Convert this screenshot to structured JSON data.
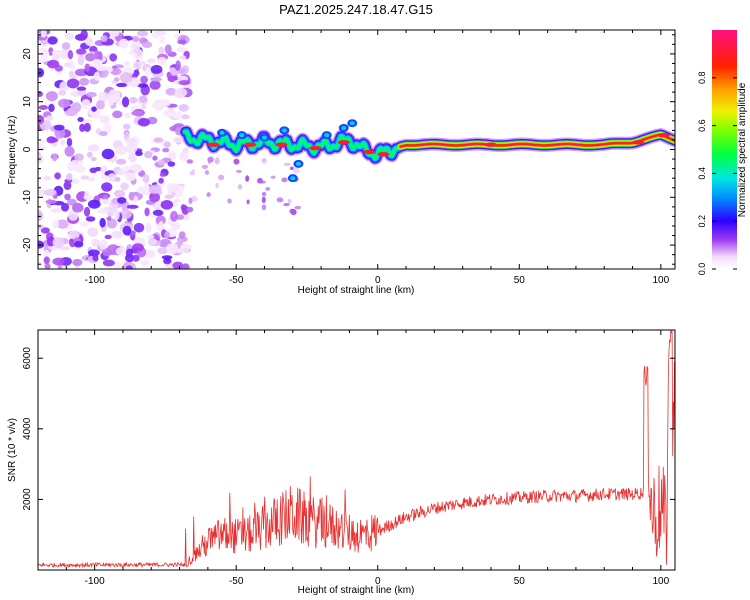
{
  "figure": {
    "title": "PAZ1.2025.247.18.47.G15"
  },
  "chart_data": [
    {
      "type": "heatmap",
      "xlabel": "Height of straight line (km)",
      "ylabel": "Frequency (Hz)",
      "xlim": [
        -120,
        105
      ],
      "ylim": [
        -25,
        25
      ],
      "x_ticks": [
        -100,
        -50,
        0,
        50,
        100
      ],
      "y_ticks": [
        -20,
        -10,
        0,
        10,
        20
      ],
      "colorbar": {
        "label": "Normalized spectral amplitude",
        "range": [
          0,
          1
        ],
        "ticks": [
          0.0,
          0.2,
          0.4,
          0.6,
          0.8
        ]
      },
      "ridge": {
        "description_points_x": [
          -68,
          -60,
          -50,
          -40,
          -30,
          -20,
          -10,
          -5,
          0,
          5,
          10,
          50,
          80,
          90,
          100,
          105
        ],
        "frequency_y": [
          2.5,
          2.0,
          1.0,
          1.5,
          1.0,
          0.5,
          2.0,
          0.0,
          -1.0,
          0.0,
          1.0,
          1.0,
          1.0,
          1.5,
          3.0,
          2.0
        ]
      },
      "noise_region_x": [
        -120,
        -67
      ],
      "noise_region_amplitude": 0.15
    },
    {
      "type": "line",
      "xlabel": "Height of straight line (km)",
      "ylabel": "SNR (10 * v/v)",
      "xlim": [
        -120,
        105
      ],
      "ylim": [
        0,
        6800
      ],
      "x_ticks": [
        -100,
        -50,
        0,
        50,
        100
      ],
      "y_ticks": [
        2000,
        4000,
        6000
      ],
      "color": "#e83030",
      "envelope": {
        "x": [
          -120,
          -68,
          -60,
          -55,
          -50,
          -45,
          -40,
          -35,
          -30,
          -25,
          -20,
          -15,
          -10,
          -5,
          0,
          10,
          20,
          30,
          40,
          50,
          60,
          70,
          80,
          90,
          94,
          95,
          96,
          98,
          100,
          102,
          103,
          104,
          105
        ],
        "y": [
          140,
          150,
          800,
          1000,
          950,
          1000,
          1200,
          1400,
          1600,
          1400,
          1300,
          1200,
          1050,
          1000,
          1100,
          1500,
          1750,
          1900,
          2000,
          2050,
          2100,
          2100,
          2150,
          2150,
          2200,
          5800,
          2000,
          1500,
          1800,
          1200,
          6800,
          3000,
          5000
        ]
      }
    }
  ]
}
